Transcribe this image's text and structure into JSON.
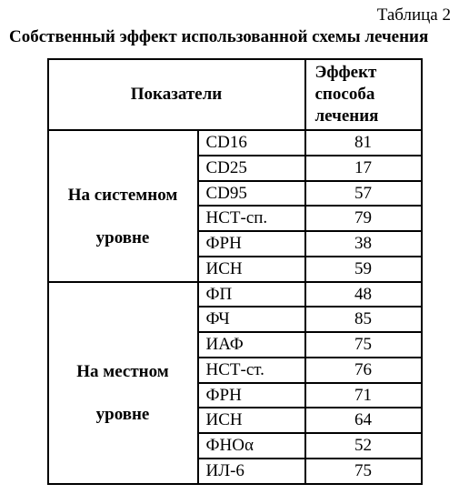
{
  "caption": "Таблица 2",
  "title": "Собственный эффект использованной схемы лечения",
  "headers": {
    "indicators": "Показатели",
    "effect_l1": "Эффект",
    "effect_l2": "способа",
    "effect_l3": "лечения"
  },
  "groups": [
    {
      "label_l1": "На системном",
      "label_l2": "уровне",
      "rows": [
        {
          "param": "CD16",
          "value": "81"
        },
        {
          "param": "CD25",
          "value": "17"
        },
        {
          "param": "CD95",
          "value": "57"
        },
        {
          "param": "НСТ-сп.",
          "value": "79"
        },
        {
          "param": "ФРН",
          "value": "38"
        },
        {
          "param": "ИСН",
          "value": "59"
        }
      ]
    },
    {
      "label_l1": "На местном",
      "label_l2": "уровне",
      "rows": [
        {
          "param": "ФП",
          "value": "48"
        },
        {
          "param": "ФЧ",
          "value": "85"
        },
        {
          "param": "ИАФ",
          "value": "75"
        },
        {
          "param": "НСТ-ст.",
          "value": "76"
        },
        {
          "param": "ФРН",
          "value": "71"
        },
        {
          "param": "ИСН",
          "value": "64"
        },
        {
          "param": "ФНОα",
          "value": "52"
        },
        {
          "param": "ИЛ-6",
          "value": "75"
        }
      ]
    }
  ],
  "col_widths": {
    "group": 165,
    "param": 110,
    "value": 120
  }
}
